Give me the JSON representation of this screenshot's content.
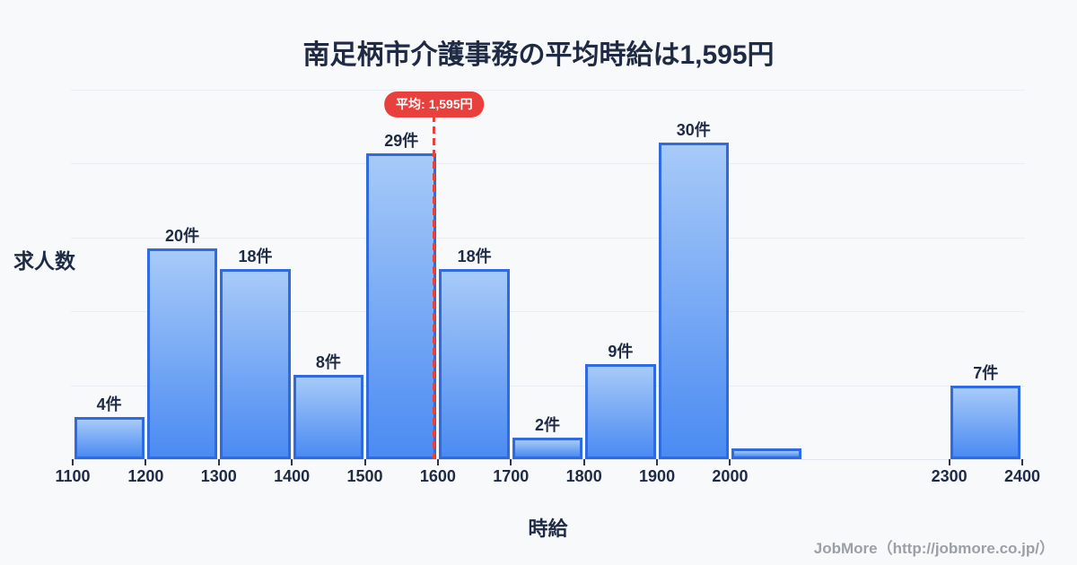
{
  "title": "南足柄市介護事務の平均時給は1,595円",
  "average_badge": "平均: 1,595円",
  "ylabel": "求人数",
  "xlabel": "時給",
  "footer": "JobMore（http://jobmore.co.jp/）",
  "colors": {
    "background": "#f8f9fb",
    "text_dark": "#1f2b45",
    "grid": "#e9edf4",
    "axis_line": "#e0e4ee",
    "bar_fill_top": "#a7caf8",
    "bar_fill_bottom": "#4b8bf2",
    "bar_border": "#2e6be2",
    "average_red": "#e8403c",
    "badge_text": "#ffffff",
    "footer_gray": "#9ba0a7"
  },
  "chart_data": {
    "type": "bar",
    "title": "南足柄市介護事務の平均時給は1,595円",
    "xlabel": "時給",
    "ylabel": "求人数",
    "unit_suffix": "件",
    "bins": [
      {
        "from": 1100,
        "to": 1200,
        "count": 4,
        "label": "4件"
      },
      {
        "from": 1200,
        "to": 1300,
        "count": 20,
        "label": "20件"
      },
      {
        "from": 1300,
        "to": 1400,
        "count": 18,
        "label": "18件"
      },
      {
        "from": 1400,
        "to": 1500,
        "count": 8,
        "label": "8件"
      },
      {
        "from": 1500,
        "to": 1600,
        "count": 29,
        "label": "29件"
      },
      {
        "from": 1600,
        "to": 1700,
        "count": 18,
        "label": "18件"
      },
      {
        "from": 1700,
        "to": 1800,
        "count": 2,
        "label": "2件"
      },
      {
        "from": 1800,
        "to": 1900,
        "count": 9,
        "label": "9件"
      },
      {
        "from": 1900,
        "to": 2000,
        "count": 30,
        "label": "30件"
      },
      {
        "from": 2000,
        "to": 2100,
        "count": 1,
        "label": ""
      },
      {
        "from": 2300,
        "to": 2400,
        "count": 7,
        "label": "7件"
      }
    ],
    "average": 1595,
    "average_label": "平均: 1,595円",
    "x_ticks": [
      1100,
      1200,
      1300,
      1400,
      1500,
      1600,
      1700,
      1800,
      1900,
      2000,
      2300,
      2400
    ],
    "xlim": [
      1100,
      2400
    ],
    "ylim": [
      0,
      35
    ],
    "grid_step": 7,
    "grid": true,
    "legend": false
  }
}
